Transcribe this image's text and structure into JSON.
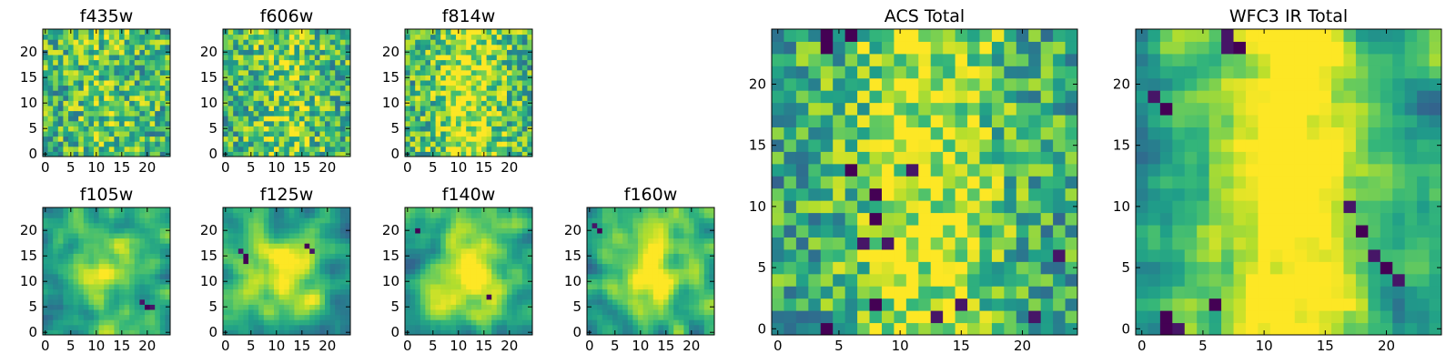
{
  "chart_data": [
    {
      "type": "heatmap",
      "title": "f435w",
      "grid": [
        25,
        25
      ],
      "xticks": [
        "0",
        "5",
        "10",
        "15",
        "20"
      ],
      "yticks": [
        "0",
        "5",
        "10",
        "15",
        "20"
      ],
      "colormap": "viridis",
      "seed": 11,
      "smooth": 0,
      "pattern": "noisy",
      "ridge": 0.1,
      "dark_spots": []
    },
    {
      "type": "heatmap",
      "title": "f606w",
      "grid": [
        25,
        25
      ],
      "xticks": [
        "0",
        "5",
        "10",
        "15",
        "20"
      ],
      "yticks": [
        "0",
        "5",
        "10",
        "15",
        "20"
      ],
      "colormap": "viridis",
      "seed": 23,
      "smooth": 0,
      "pattern": "noisy",
      "ridge": 0.15,
      "dark_spots": []
    },
    {
      "type": "heatmap",
      "title": "f814w",
      "grid": [
        25,
        25
      ],
      "xticks": [
        "0",
        "5",
        "10",
        "15",
        "20"
      ],
      "yticks": [
        "0",
        "5",
        "10",
        "15",
        "20"
      ],
      "colormap": "viridis",
      "seed": 37,
      "smooth": 0,
      "pattern": "noisy",
      "ridge": 0.3,
      "dark_spots": []
    },
    {
      "type": "heatmap",
      "title": "f105w",
      "grid": [
        25,
        25
      ],
      "xticks": [
        "0",
        "5",
        "10",
        "15",
        "20"
      ],
      "yticks": [
        "0",
        "5",
        "10",
        "15",
        "20"
      ],
      "colormap": "viridis",
      "seed": 41,
      "smooth": 2,
      "pattern": "blob",
      "ridge": 0.4,
      "dark_spots": [
        [
          19,
          6
        ],
        [
          20,
          5
        ],
        [
          21,
          5
        ]
      ]
    },
    {
      "type": "heatmap",
      "title": "f125w",
      "grid": [
        25,
        25
      ],
      "xticks": [
        "0",
        "5",
        "10",
        "15",
        "20"
      ],
      "yticks": [
        "0",
        "5",
        "10",
        "15",
        "20"
      ],
      "colormap": "viridis",
      "seed": 53,
      "smooth": 2,
      "pattern": "blob",
      "ridge": 0.4,
      "dark_spots": [
        [
          3,
          16
        ],
        [
          4,
          15
        ],
        [
          4,
          14
        ],
        [
          16,
          17
        ],
        [
          17,
          16
        ]
      ]
    },
    {
      "type": "heatmap",
      "title": "f140w",
      "grid": [
        25,
        25
      ],
      "xticks": [
        "0",
        "5",
        "10",
        "15",
        "20"
      ],
      "yticks": [
        "0",
        "5",
        "10",
        "15",
        "20"
      ],
      "colormap": "viridis",
      "seed": 67,
      "smooth": 2,
      "pattern": "blob",
      "ridge": 0.45,
      "dark_spots": [
        [
          2,
          20
        ],
        [
          16,
          7
        ]
      ]
    },
    {
      "type": "heatmap",
      "title": "f160w",
      "grid": [
        25,
        25
      ],
      "xticks": [
        "0",
        "5",
        "10",
        "15",
        "20"
      ],
      "yticks": [
        "0",
        "5",
        "10",
        "15",
        "20"
      ],
      "colormap": "viridis",
      "seed": 79,
      "smooth": 2,
      "pattern": "blob",
      "ridge": 0.5,
      "dark_spots": [
        [
          1,
          21
        ],
        [
          2,
          20
        ]
      ]
    },
    {
      "type": "heatmap",
      "title": "ACS Total",
      "grid": [
        25,
        25
      ],
      "xticks": [
        "0",
        "5",
        "10",
        "15",
        "20"
      ],
      "yticks": [
        "0",
        "5",
        "10",
        "15",
        "20"
      ],
      "colormap": "viridis",
      "seed": 97,
      "smooth": 0,
      "pattern": "ridge",
      "ridge": 0.35,
      "dark_spots": [
        [
          4,
          24
        ],
        [
          6,
          24
        ],
        [
          4,
          23
        ],
        [
          13,
          1
        ],
        [
          15,
          2
        ],
        [
          8,
          11
        ],
        [
          11,
          13
        ],
        [
          6,
          13
        ],
        [
          8,
          9
        ],
        [
          9,
          7
        ],
        [
          7,
          7
        ],
        [
          23,
          6
        ],
        [
          21,
          1
        ],
        [
          4,
          0
        ],
        [
          8,
          2
        ]
      ]
    },
    {
      "type": "heatmap",
      "title": "WFC3 IR Total",
      "grid": [
        25,
        25
      ],
      "xticks": [
        "0",
        "5",
        "10",
        "15",
        "20"
      ],
      "yticks": [
        "0",
        "5",
        "10",
        "15",
        "20"
      ],
      "colormap": "viridis",
      "seed": 113,
      "smooth": 1,
      "pattern": "ridge",
      "ridge": 0.55,
      "dark_spots": [
        [
          7,
          24
        ],
        [
          8,
          23
        ],
        [
          7,
          23
        ],
        [
          2,
          0
        ],
        [
          3,
          0
        ],
        [
          2,
          1
        ],
        [
          6,
          2
        ],
        [
          17,
          10
        ],
        [
          18,
          8
        ],
        [
          19,
          6
        ],
        [
          20,
          5
        ],
        [
          21,
          4
        ],
        [
          2,
          18
        ],
        [
          1,
          19
        ]
      ]
    }
  ]
}
